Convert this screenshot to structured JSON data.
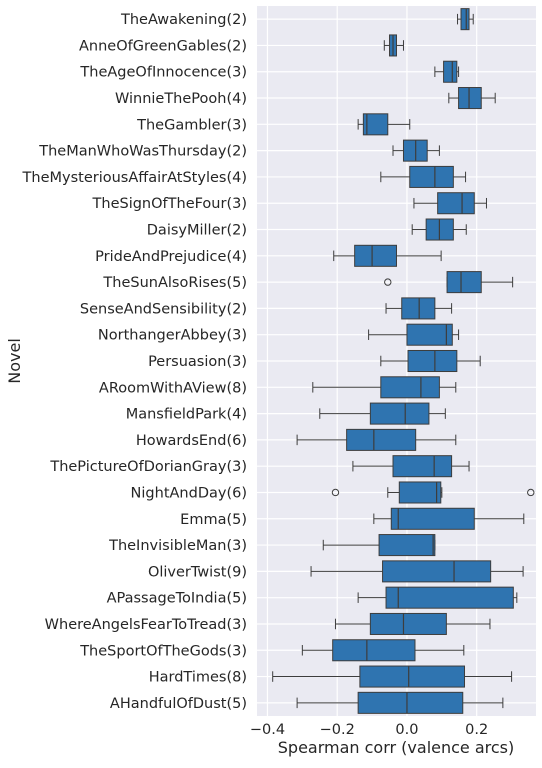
{
  "chart_data": {
    "type": "boxplot",
    "orientation": "horizontal",
    "xlabel": "Spearman corr (valence arcs)",
    "ylabel": "Novel",
    "xlim": [
      -0.43,
      0.37
    ],
    "xticks": [
      -0.4,
      -0.2,
      0.0,
      0.2
    ],
    "xtick_labels": [
      "−0.4",
      "−0.2",
      "0.0",
      "0.2"
    ],
    "grid": true,
    "background": "#eaeaf2",
    "box_color": "#2f74b0",
    "categories": [
      "TheAwakening(2)",
      "AnneOfGreenGables(2)",
      "TheAgeOfInnocence(3)",
      "WinnieThePooh(4)",
      "TheGambler(3)",
      "TheManWhoWasThursday(2)",
      "TheMysteriousAffairAtStyles(4)",
      "TheSignOfTheFour(3)",
      "DaisyMiller(2)",
      "PrideAndPrejudice(4)",
      "TheSunAlsoRises(5)",
      "SenseAndSensibility(2)",
      "NorthangerAbbey(3)",
      "Persuasion(3)",
      "ARoomWithAView(8)",
      "MansfieldPark(4)",
      "HowardsEnd(6)",
      "ThePictureOfDorianGray(3)",
      "NightAndDay(6)",
      "Emma(5)",
      "TheInvisibleMan(3)",
      "OliverTwist(9)",
      "APassageToIndia(5)",
      "WhereAngelsFearToTread(3)",
      "TheSportOfTheGods(3)",
      "HardTimes(8)",
      "AHandfulOfDust(5)"
    ],
    "boxes": [
      {
        "whislo": 0.145,
        "q1": 0.155,
        "med": 0.17,
        "q3": 0.178,
        "whishi": 0.19,
        "fliers": []
      },
      {
        "whislo": -0.065,
        "q1": -0.05,
        "med": -0.04,
        "q3": -0.03,
        "whishi": -0.01,
        "fliers": []
      },
      {
        "whislo": 0.08,
        "q1": 0.105,
        "med": 0.13,
        "q3": 0.143,
        "whishi": 0.148,
        "fliers": []
      },
      {
        "whislo": 0.12,
        "q1": 0.148,
        "med": 0.178,
        "q3": 0.213,
        "whishi": 0.253,
        "fliers": []
      },
      {
        "whislo": -0.14,
        "q1": -0.125,
        "med": -0.115,
        "q3": -0.055,
        "whishi": 0.008,
        "fliers": []
      },
      {
        "whislo": -0.04,
        "q1": -0.01,
        "med": 0.025,
        "q3": 0.058,
        "whishi": 0.093,
        "fliers": []
      },
      {
        "whislo": -0.075,
        "q1": 0.008,
        "med": 0.08,
        "q3": 0.133,
        "whishi": 0.168,
        "fliers": []
      },
      {
        "whislo": 0.02,
        "q1": 0.088,
        "med": 0.158,
        "q3": 0.193,
        "whishi": 0.228,
        "fliers": []
      },
      {
        "whislo": 0.015,
        "q1": 0.055,
        "med": 0.093,
        "q3": 0.133,
        "whishi": 0.17,
        "fliers": []
      },
      {
        "whislo": -0.21,
        "q1": -0.15,
        "med": -0.1,
        "q3": -0.03,
        "whishi": 0.098,
        "fliers": []
      },
      {
        "whislo": 0.115,
        "q1": 0.115,
        "med": 0.155,
        "q3": 0.213,
        "whishi": 0.303,
        "fliers": [
          -0.055
        ]
      },
      {
        "whislo": -0.06,
        "q1": -0.015,
        "med": 0.035,
        "q3": 0.08,
        "whishi": 0.128,
        "fliers": []
      },
      {
        "whislo": -0.11,
        "q1": 0.0,
        "med": 0.113,
        "q3": 0.13,
        "whishi": 0.148,
        "fliers": []
      },
      {
        "whislo": -0.075,
        "q1": 0.003,
        "med": 0.08,
        "q3": 0.143,
        "whishi": 0.21,
        "fliers": []
      },
      {
        "whislo": -0.27,
        "q1": -0.075,
        "med": 0.04,
        "q3": 0.093,
        "whishi": 0.14,
        "fliers": []
      },
      {
        "whislo": -0.25,
        "q1": -0.105,
        "med": -0.005,
        "q3": 0.063,
        "whishi": 0.11,
        "fliers": []
      },
      {
        "whislo": -0.315,
        "q1": -0.173,
        "med": -0.095,
        "q3": 0.025,
        "whishi": 0.14,
        "fliers": []
      },
      {
        "whislo": -0.155,
        "q1": -0.04,
        "med": 0.078,
        "q3": 0.128,
        "whishi": 0.178,
        "fliers": []
      },
      {
        "whislo": -0.055,
        "q1": -0.022,
        "med": 0.085,
        "q3": 0.097,
        "whishi": 0.1,
        "fliers": [
          -0.205,
          0.355
        ]
      },
      {
        "whislo": -0.095,
        "q1": -0.045,
        "med": -0.025,
        "q3": 0.193,
        "whishi": 0.335,
        "fliers": []
      },
      {
        "whislo": -0.24,
        "q1": -0.08,
        "med": 0.075,
        "q3": 0.08,
        "whishi": 0.08,
        "fliers": []
      },
      {
        "whislo": -0.275,
        "q1": -0.07,
        "med": 0.135,
        "q3": 0.24,
        "whishi": 0.333,
        "fliers": []
      },
      {
        "whislo": -0.14,
        "q1": -0.06,
        "med": -0.025,
        "q3": 0.305,
        "whishi": 0.315,
        "fliers": []
      },
      {
        "whislo": -0.205,
        "q1": -0.105,
        "med": -0.01,
        "q3": 0.113,
        "whishi": 0.238,
        "fliers": []
      },
      {
        "whislo": -0.3,
        "q1": -0.213,
        "med": -0.115,
        "q3": 0.023,
        "whishi": 0.163,
        "fliers": []
      },
      {
        "whislo": -0.385,
        "q1": -0.135,
        "med": 0.005,
        "q3": 0.165,
        "whishi": 0.3,
        "fliers": []
      },
      {
        "whislo": -0.315,
        "q1": -0.14,
        "med": 0.0,
        "q3": 0.16,
        "whishi": 0.275,
        "fliers": []
      }
    ]
  }
}
